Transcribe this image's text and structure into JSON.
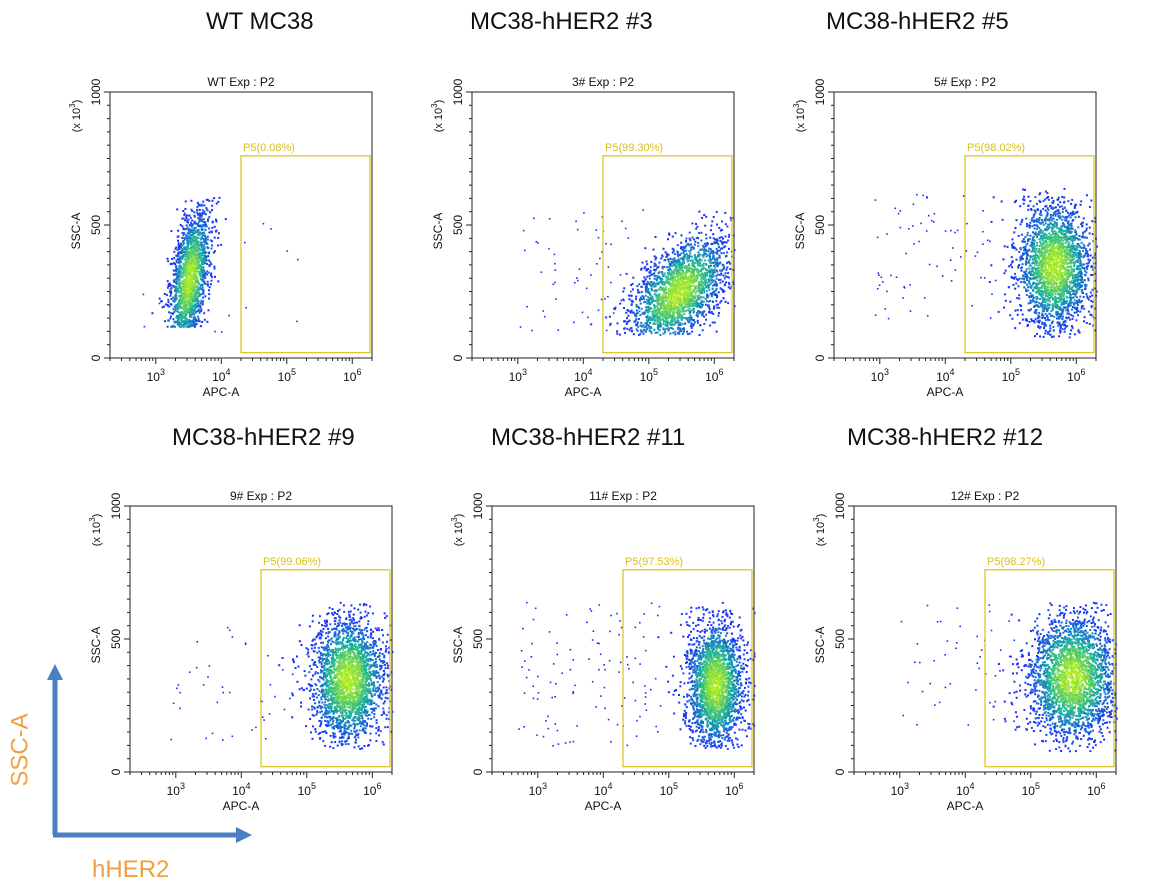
{
  "headings": [
    "WT MC38",
    "MC38-hHER2 #3",
    "MC38-hHER2 #5",
    "MC38-hHER2 #9",
    "MC38-hHER2 #11",
    "MC38-hHER2 #12"
  ],
  "legend": {
    "y_label": "SSC-A",
    "x_label": "hHER2",
    "label_color": "#f0a040",
    "arrow_color": "#4a7fc1"
  },
  "colors": {
    "gate": "#d8c21a",
    "density_low": "#1a2cff",
    "density_mid": "#18b2a0",
    "density_high": "#b8f020"
  },
  "chart_data": [
    {
      "type": "scatter",
      "title": "WT Exp : P2",
      "xlabel": "APC-A",
      "ylabel": "SSC-A",
      "y_scale_label": "(x 10^3)",
      "x_scale": "log",
      "xlim": [
        200,
        2000000
      ],
      "ylim": [
        0,
        1000
      ],
      "x_ticks": [
        "10^3",
        "10^4",
        "10^5",
        "10^6"
      ],
      "y_ticks": [
        "0",
        "500",
        "1000"
      ],
      "gate": {
        "name": "P5",
        "label": "P5(0.08%)",
        "x": [
          20000,
          2000000
        ],
        "y": [
          20,
          760
        ]
      },
      "population": {
        "x_center": 3200,
        "x_log_spread": 0.16,
        "y_center": 300,
        "y_spread": 120,
        "y_range": [
          120,
          610
        ],
        "tilt": 400,
        "n": 1800
      },
      "outliers": {
        "x_range": [
          400,
          400000
        ],
        "y_range": [
          100,
          520
        ],
        "n": 14
      }
    },
    {
      "type": "scatter",
      "title": "3# Exp : P2",
      "xlabel": "APC-A",
      "ylabel": "SSC-A",
      "y_scale_label": "(x 10^3)",
      "x_scale": "log",
      "xlim": [
        200,
        2000000
      ],
      "ylim": [
        0,
        1000
      ],
      "x_ticks": [
        "10^3",
        "10^4",
        "10^5",
        "10^6"
      ],
      "y_ticks": [
        "0",
        "500",
        "1000"
      ],
      "gate": {
        "name": "P5",
        "label": "P5(99.30%)",
        "x": [
          20000,
          2000000
        ],
        "y": [
          20,
          760
        ]
      },
      "population": {
        "x_center": 280000,
        "x_log_spread": 0.38,
        "y_center": 250,
        "y_spread": 90,
        "y_range": [
          90,
          560
        ],
        "tilt": 150,
        "n": 2200
      },
      "outliers": {
        "x_range": [
          1000,
          80000
        ],
        "y_range": [
          100,
          560
        ],
        "n": 60
      }
    },
    {
      "type": "scatter",
      "title": "5# Exp : P2",
      "xlabel": "APC-A",
      "ylabel": "SSC-A",
      "y_scale_label": "(x 10^3)",
      "x_scale": "log",
      "xlim": [
        200,
        2000000
      ],
      "ylim": [
        0,
        1000
      ],
      "x_ticks": [
        "10^3",
        "10^4",
        "10^5",
        "10^6"
      ],
      "y_ticks": [
        "0",
        "500",
        "1000"
      ],
      "gate": {
        "name": "P5",
        "label": "P5(98.02%)",
        "x": [
          20000,
          2000000
        ],
        "y": [
          20,
          760
        ]
      },
      "population": {
        "x_center": 450000,
        "x_log_spread": 0.28,
        "y_center": 350,
        "y_spread": 120,
        "y_range": [
          80,
          640
        ],
        "tilt": 0,
        "n": 2400
      },
      "outliers": {
        "x_range": [
          800,
          60000
        ],
        "y_range": [
          150,
          620
        ],
        "n": 70
      }
    },
    {
      "type": "scatter",
      "title": "9# Exp : P2",
      "xlabel": "APC-A",
      "ylabel": "SSC-A",
      "y_scale_label": "(x 10^3)",
      "x_scale": "log",
      "xlim": [
        200,
        2000000
      ],
      "ylim": [
        0,
        1000
      ],
      "x_ticks": [
        "10^3",
        "10^4",
        "10^5",
        "10^6"
      ],
      "y_ticks": [
        "0",
        "500",
        "1000"
      ],
      "gate": {
        "name": "P5",
        "label": "P5(99.06%)",
        "x": [
          20000,
          2000000
        ],
        "y": [
          20,
          760
        ]
      },
      "population": {
        "x_center": 420000,
        "x_log_spread": 0.28,
        "y_center": 350,
        "y_spread": 120,
        "y_range": [
          90,
          640
        ],
        "tilt": 0,
        "n": 2400
      },
      "outliers": {
        "x_range": [
          800,
          60000
        ],
        "y_range": [
          120,
          620
        ],
        "n": 40
      }
    },
    {
      "type": "scatter",
      "title": "11# Exp : P2",
      "xlabel": "APC-A",
      "ylabel": "SSC-A",
      "y_scale_label": "(x 10^3)",
      "x_scale": "log",
      "xlim": [
        200,
        2000000
      ],
      "ylim": [
        0,
        1000
      ],
      "x_ticks": [
        "10^3",
        "10^4",
        "10^5",
        "10^6"
      ],
      "y_ticks": [
        "0",
        "500",
        "1000"
      ],
      "gate": {
        "name": "P5",
        "label": "P5(97.53%)",
        "x": [
          20000,
          2000000
        ],
        "y": [
          20,
          760
        ]
      },
      "population": {
        "x_center": 500000,
        "x_log_spread": 0.22,
        "y_center": 330,
        "y_spread": 120,
        "y_range": [
          90,
          640
        ],
        "tilt": 0,
        "n": 2400
      },
      "outliers": {
        "x_range": [
          500,
          80000
        ],
        "y_range": [
          100,
          640
        ],
        "n": 110
      }
    },
    {
      "type": "scatter",
      "title": "12# Exp : P2",
      "xlabel": "APC-A",
      "ylabel": "SSC-A",
      "y_scale_label": "(x 10^3)",
      "x_scale": "log",
      "xlim": [
        200,
        2000000
      ],
      "ylim": [
        0,
        1000
      ],
      "x_ticks": [
        "10^3",
        "10^4",
        "10^5",
        "10^6"
      ],
      "y_ticks": [
        "0",
        "500",
        "1000"
      ],
      "gate": {
        "name": "P5",
        "label": "P5(98.27%)",
        "x": [
          20000,
          2000000
        ],
        "y": [
          20,
          760
        ]
      },
      "population": {
        "x_center": 420000,
        "x_log_spread": 0.34,
        "y_center": 360,
        "y_spread": 120,
        "y_range": [
          80,
          640
        ],
        "tilt": 0,
        "n": 2600
      },
      "outliers": {
        "x_range": [
          1000,
          60000
        ],
        "y_range": [
          150,
          640
        ],
        "n": 45
      }
    }
  ]
}
